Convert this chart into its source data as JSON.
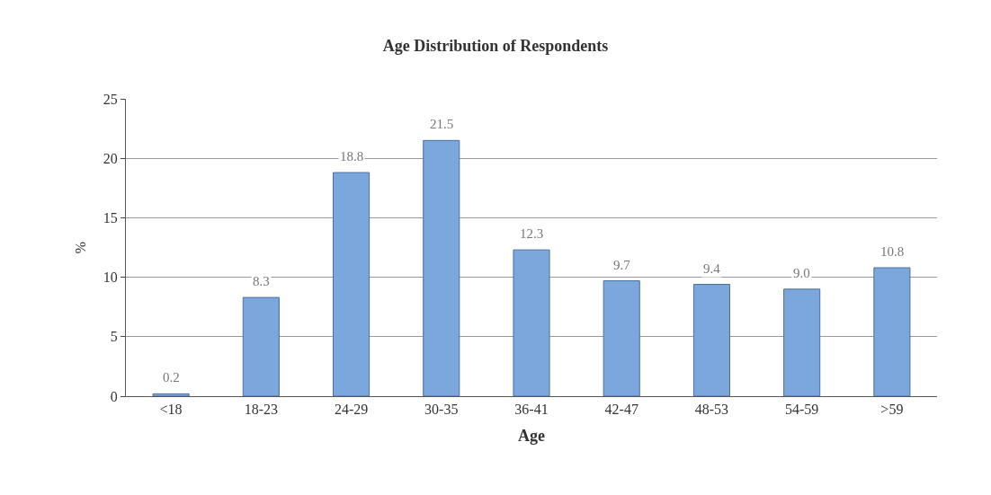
{
  "chart_data": {
    "type": "bar",
    "title": "Age Distribution of Respondents",
    "xlabel": "Age",
    "ylabel": "%",
    "categories": [
      "<18",
      "18-23",
      "24-29",
      "30-35",
      "36-41",
      "42-47",
      "48-53",
      "54-59",
      ">59"
    ],
    "values": [
      0.2,
      8.3,
      18.8,
      21.5,
      12.3,
      9.7,
      9.4,
      9.0,
      10.8
    ],
    "color": "#7ba7dc",
    "ylim": [
      0,
      25
    ],
    "yticks": [
      0,
      5,
      10,
      15,
      20,
      25
    ],
    "value_labels": [
      "0.2",
      "8.3",
      "18.8",
      "21.5",
      "12.3",
      "9.7",
      "9.4",
      "9.0",
      "10.8"
    ],
    "grid": "y",
    "legend": false
  }
}
